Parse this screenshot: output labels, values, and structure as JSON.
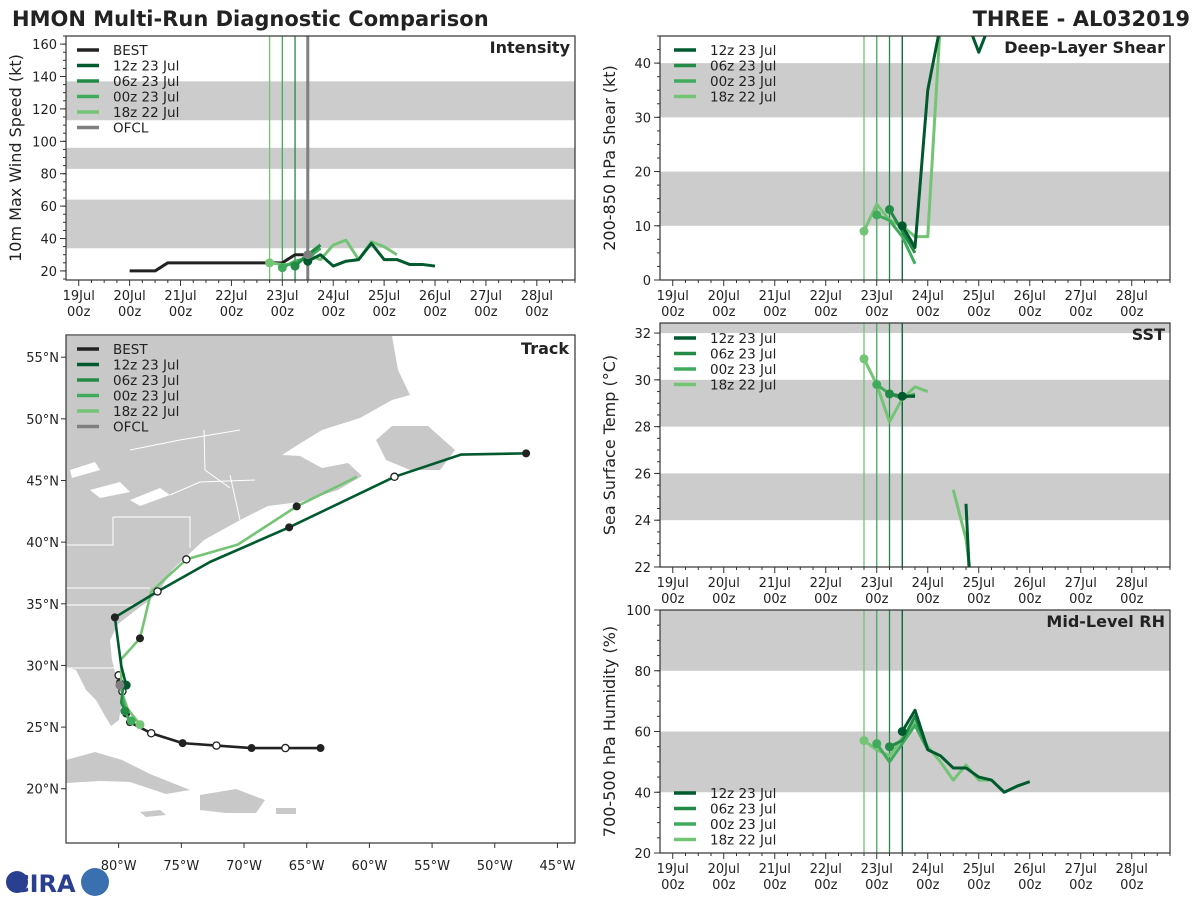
{
  "header": {
    "title_left": "HMON Multi-Run Diagnostic Comparison",
    "title_right": "THREE - AL032019"
  },
  "logo": {
    "text": "CIRA"
  },
  "colors": {
    "BEST": "#222222",
    "12z 23 Jul": "#005a2e",
    "06z 23 Jul": "#238b45",
    "00z 23 Jul": "#41ab5d",
    "18z 22 Jul": "#74c476",
    "OFCL": "#808080",
    "band": "#cccccc",
    "land": "#c8c8c8"
  },
  "x_ticks": [
    {
      "d": "19Jul",
      "h": "00z"
    },
    {
      "d": "20Jul",
      "h": "00z"
    },
    {
      "d": "21Jul",
      "h": "00z"
    },
    {
      "d": "22Jul",
      "h": "00z"
    },
    {
      "d": "23Jul",
      "h": "00z"
    },
    {
      "d": "24Jul",
      "h": "00z"
    },
    {
      "d": "25Jul",
      "h": "00z"
    },
    {
      "d": "26Jul",
      "h": "00z"
    },
    {
      "d": "27Jul",
      "h": "00z"
    },
    {
      "d": "28Jul",
      "h": "00z"
    }
  ],
  "chart_data": [
    {
      "type": "line",
      "id": "intensity",
      "title": "Intensity",
      "ylabel": "10m Max Wind Speed (kt)",
      "x_units": "days since 19Jul 00z",
      "xlim": [
        -0.25,
        9.75
      ],
      "ylim": [
        14.4,
        165
      ],
      "yticks": [
        20,
        40,
        60,
        80,
        100,
        120,
        140,
        160
      ],
      "bands": [
        [
          34,
          64
        ],
        [
          83,
          96
        ],
        [
          113,
          137
        ]
      ],
      "init_lines": [
        {
          "run": "18z 22 Jul",
          "x": 3.75
        },
        {
          "run": "00z 23 Jul",
          "x": 4.0
        },
        {
          "run": "06z 23 Jul",
          "x": 4.25
        },
        {
          "run": "12z 23 Jul",
          "x": 4.5
        },
        {
          "run": "OFCL",
          "x": 4.5
        }
      ],
      "legend": [
        "BEST",
        "12z 23 Jul",
        "06z 23 Jul",
        "00z 23 Jul",
        "18z 22 Jul",
        "OFCL"
      ],
      "series": [
        {
          "name": "BEST",
          "x": [
            1.0,
            1.25,
            1.5,
            1.75,
            2.0,
            2.5,
            3.0,
            3.5,
            3.75,
            4.0,
            4.25,
            4.5
          ],
          "y": [
            20,
            20,
            20,
            25,
            25,
            25,
            25,
            25,
            25,
            25,
            30,
            30
          ]
        },
        {
          "name": "18z 22 Jul",
          "x": [
            3.75,
            4.0,
            4.25,
            4.5,
            4.75,
            5.0,
            5.25,
            5.5,
            5.75,
            6.0,
            6.25
          ],
          "y": [
            25,
            24,
            24,
            30,
            27,
            36,
            39,
            27,
            38,
            35,
            30
          ],
          "marker": 0
        },
        {
          "name": "00z 23 Jul",
          "x": [
            4.0,
            4.25,
            4.5,
            4.75
          ],
          "y": [
            22,
            26,
            28,
            34
          ],
          "marker": 0
        },
        {
          "name": "06z 23 Jul",
          "x": [
            4.25,
            4.5,
            4.75
          ],
          "y": [
            23,
            30,
            36
          ],
          "marker": 0
        },
        {
          "name": "12z 23 Jul",
          "x": [
            4.5,
            4.75,
            5.0,
            5.25,
            5.5,
            5.75,
            6.0,
            6.25,
            6.5,
            6.75,
            7.0
          ],
          "y": [
            26,
            30,
            23,
            26,
            27,
            37,
            27,
            27,
            24,
            24,
            23
          ],
          "marker": 0
        },
        {
          "name": "OFCL",
          "x": [
            4.5
          ],
          "y": [
            30
          ],
          "marker": 0
        }
      ]
    },
    {
      "type": "line",
      "id": "shear",
      "title": "Deep-Layer Shear",
      "ylabel": "200-850 hPa Shear (kt)",
      "x_units": "days since 19Jul 00z",
      "xlim": [
        -0.25,
        9.75
      ],
      "ylim": [
        0,
        45
      ],
      "yticks": [
        0,
        10,
        20,
        30,
        40
      ],
      "bands": [
        [
          10,
          20
        ],
        [
          30,
          40
        ]
      ],
      "init_lines": [
        {
          "run": "18z 22 Jul",
          "x": 3.75
        },
        {
          "run": "00z 23 Jul",
          "x": 4.0
        },
        {
          "run": "06z 23 Jul",
          "x": 4.25
        },
        {
          "run": "12z 23 Jul",
          "x": 4.5
        }
      ],
      "legend": [
        "12z 23 Jul",
        "06z 23 Jul",
        "00z 23 Jul",
        "18z 22 Jul"
      ],
      "series": [
        {
          "name": "18z 22 Jul",
          "x": [
            3.75,
            4.0,
            4.25,
            4.5,
            4.75,
            5.0,
            5.25
          ],
          "y": [
            9,
            14,
            11,
            10,
            8,
            8,
            48
          ],
          "marker": 0
        },
        {
          "name": "00z 23 Jul",
          "x": [
            4.0,
            4.25,
            4.5,
            4.75
          ],
          "y": [
            12,
            11,
            8,
            3
          ],
          "marker": 0
        },
        {
          "name": "06z 23 Jul",
          "x": [
            4.25,
            4.5,
            4.75
          ],
          "y": [
            13,
            9,
            5
          ],
          "marker": 0
        },
        {
          "name": "12z 23 Jul",
          "x": [
            4.5,
            4.75,
            5.0,
            5.25,
            5.6,
            6.0,
            6.25
          ],
          "y": [
            10,
            6,
            35,
            47,
            52,
            42,
            48
          ],
          "marker": 0
        }
      ]
    },
    {
      "type": "line",
      "id": "sst",
      "title": "SST",
      "ylabel": "Sea Surface Temp (°C)",
      "x_units": "days since 19Jul 00z",
      "xlim": [
        -0.25,
        9.75
      ],
      "ylim": [
        22,
        32.43
      ],
      "yticks": [
        22,
        24,
        26,
        28,
        30,
        32
      ],
      "bands": [
        [
          24,
          26
        ],
        [
          28,
          30
        ],
        [
          32,
          33
        ]
      ],
      "init_lines": [
        {
          "run": "18z 22 Jul",
          "x": 3.75
        },
        {
          "run": "00z 23 Jul",
          "x": 4.0
        },
        {
          "run": "06z 23 Jul",
          "x": 4.25
        },
        {
          "run": "12z 23 Jul",
          "x": 4.5
        }
      ],
      "legend": [
        "12z 23 Jul",
        "06z 23 Jul",
        "00z 23 Jul",
        "18z 22 Jul"
      ],
      "series": [
        {
          "name": "18z 22 Jul",
          "x": [
            3.75,
            4.0,
            4.25,
            4.5,
            4.75,
            5.0
          ],
          "y": [
            30.9,
            29.8,
            28.2,
            29.2,
            29.7,
            29.5
          ],
          "marker": 0
        },
        {
          "name": "18z 22 Jul",
          "x": [
            5.5,
            5.75,
            5.85
          ],
          "y": [
            25.3,
            23.2,
            21.5
          ]
        },
        {
          "name": "00z 23 Jul",
          "x": [
            4.0,
            4.25,
            4.5,
            4.75
          ],
          "y": [
            29.8,
            29.4,
            29.2,
            29.4
          ],
          "marker": 0
        },
        {
          "name": "06z 23 Jul",
          "x": [
            4.25,
            4.5,
            4.75
          ],
          "y": [
            29.4,
            29.3,
            29.3
          ],
          "marker": 0
        },
        {
          "name": "12z 23 Jul",
          "x": [
            4.5,
            4.75
          ],
          "y": [
            29.3,
            29.3
          ],
          "marker": 0
        },
        {
          "name": "12z 23 Jul",
          "x": [
            5.75,
            5.82
          ],
          "y": [
            24.7,
            21.5
          ]
        }
      ]
    },
    {
      "type": "line",
      "id": "rh",
      "title": "Mid-Level RH",
      "ylabel": "700-500 hPa Humidity (%)",
      "x_units": "days since 19Jul 00z",
      "xlim": [
        -0.25,
        9.75
      ],
      "ylim": [
        20,
        100
      ],
      "yticks": [
        20,
        40,
        60,
        80,
        100
      ],
      "bands": [
        [
          40,
          60
        ],
        [
          80,
          100
        ]
      ],
      "init_lines": [
        {
          "run": "18z 22 Jul",
          "x": 3.75
        },
        {
          "run": "00z 23 Jul",
          "x": 4.0
        },
        {
          "run": "06z 23 Jul",
          "x": 4.25
        },
        {
          "run": "12z 23 Jul",
          "x": 4.5
        }
      ],
      "legend": [
        "12z 23 Jul",
        "06z 23 Jul",
        "00z 23 Jul",
        "18z 22 Jul"
      ],
      "series": [
        {
          "name": "18z 22 Jul",
          "x": [
            3.75,
            4.0,
            4.25,
            4.5,
            4.75,
            5.0,
            5.25,
            5.5,
            5.75,
            6.0,
            6.25
          ],
          "y": [
            57,
            54,
            52,
            58,
            63,
            55,
            50,
            44,
            49,
            44,
            44
          ],
          "marker": 0
        },
        {
          "name": "00z 23 Jul",
          "x": [
            4.0,
            4.25,
            4.5,
            4.75,
            5.0
          ],
          "y": [
            56,
            50,
            56,
            62,
            54
          ],
          "marker": 0
        },
        {
          "name": "06z 23 Jul",
          "x": [
            4.25,
            4.5,
            4.75,
            5.0
          ],
          "y": [
            55,
            57,
            65,
            54
          ],
          "marker": 0
        },
        {
          "name": "12z 23 Jul",
          "x": [
            4.5,
            4.75,
            5.0,
            5.25,
            5.5,
            5.75,
            6.0,
            6.25,
            6.5,
            6.75,
            7.0
          ],
          "y": [
            60,
            67,
            54,
            52,
            48,
            48,
            45,
            44,
            40,
            42,
            43.5
          ],
          "marker": 0
        }
      ]
    },
    {
      "type": "scatter",
      "id": "track",
      "title": "Track",
      "xlabel": "longitude",
      "ylabel": "latitude",
      "xlim": [
        -84.2,
        -43.6
      ],
      "ylim": [
        15.6,
        56.8
      ],
      "xticks": [
        {
          "v": -80,
          "label": "80°W"
        },
        {
          "v": -75,
          "label": "75°W"
        },
        {
          "v": -70,
          "label": "70°W"
        },
        {
          "v": -65,
          "label": "65°W"
        },
        {
          "v": -60,
          "label": "60°W"
        },
        {
          "v": -55,
          "label": "55°W"
        },
        {
          "v": -50,
          "label": "50°W"
        },
        {
          "v": -45,
          "label": "45°W"
        }
      ],
      "yticks": [
        {
          "v": 20,
          "label": "20°N"
        },
        {
          "v": 25,
          "label": "25°N"
        },
        {
          "v": 30,
          "label": "30°N"
        },
        {
          "v": 35,
          "label": "35°N"
        },
        {
          "v": 40,
          "label": "40°N"
        },
        {
          "v": 45,
          "label": "45°N"
        },
        {
          "v": 50,
          "label": "50°N"
        },
        {
          "v": 55,
          "label": "55°N"
        }
      ],
      "legend": [
        "BEST",
        "12z 23 Jul",
        "06z 23 Jul",
        "00z 23 Jul",
        "18z 22 Jul",
        "OFCL"
      ],
      "series": [
        {
          "name": "BEST",
          "lon": [
            -63.9,
            -66.7,
            -69.4,
            -72.2,
            -74.9,
            -77.4,
            -79.1,
            -79.4,
            -79.7,
            -79.9,
            -80.0
          ],
          "lat": [
            23.3,
            23.3,
            23.3,
            23.5,
            23.7,
            24.5,
            25.4,
            26.1,
            27.9,
            28.6,
            29.2
          ],
          "dots": [
            "f",
            "o",
            "f",
            "o",
            "f",
            "o",
            "f",
            "f",
            "o",
            "f",
            "o"
          ]
        },
        {
          "name": "18z 22 Jul",
          "lon": [
            -78.3,
            -79.3,
            -79.8,
            -79.8,
            -78.3,
            -77.4,
            -74.6,
            -70.5,
            -65.8,
            -61.0
          ],
          "lat": [
            25.2,
            26.5,
            28.0,
            30.5,
            32.2,
            36.0,
            38.6,
            39.8,
            42.9,
            45.3
          ],
          "dots": [
            "g",
            "",
            "",
            "",
            "f",
            "",
            "o",
            "",
            "f",
            ""
          ]
        },
        {
          "name": "00z 23 Jul",
          "lon": [
            -79.0,
            -79.3,
            -79.7
          ],
          "lat": [
            25.5,
            25.8,
            27.5
          ],
          "dots": [
            "g",
            "",
            ""
          ]
        },
        {
          "name": "06z 23 Jul",
          "lon": [
            -79.5,
            -79.8,
            -79.6
          ],
          "lat": [
            26.3,
            27.0,
            28.5
          ],
          "dots": [
            "g",
            "",
            ""
          ]
        },
        {
          "name": "12z 23 Jul",
          "lon": [
            -79.4,
            -79.8,
            -80.3,
            -76.9,
            -72.7,
            -66.4,
            -58.0,
            -52.7,
            -47.5
          ],
          "lat": [
            28.4,
            30.0,
            33.9,
            36.0,
            38.4,
            41.2,
            45.3,
            47.1,
            47.2
          ],
          "dots": [
            "g",
            "",
            "f",
            "o",
            "",
            "f",
            "o",
            "",
            "f"
          ]
        },
        {
          "name": "OFCL",
          "lon": [
            -79.9
          ],
          "lat": [
            28.4
          ],
          "dots": [
            "g"
          ]
        }
      ]
    }
  ]
}
